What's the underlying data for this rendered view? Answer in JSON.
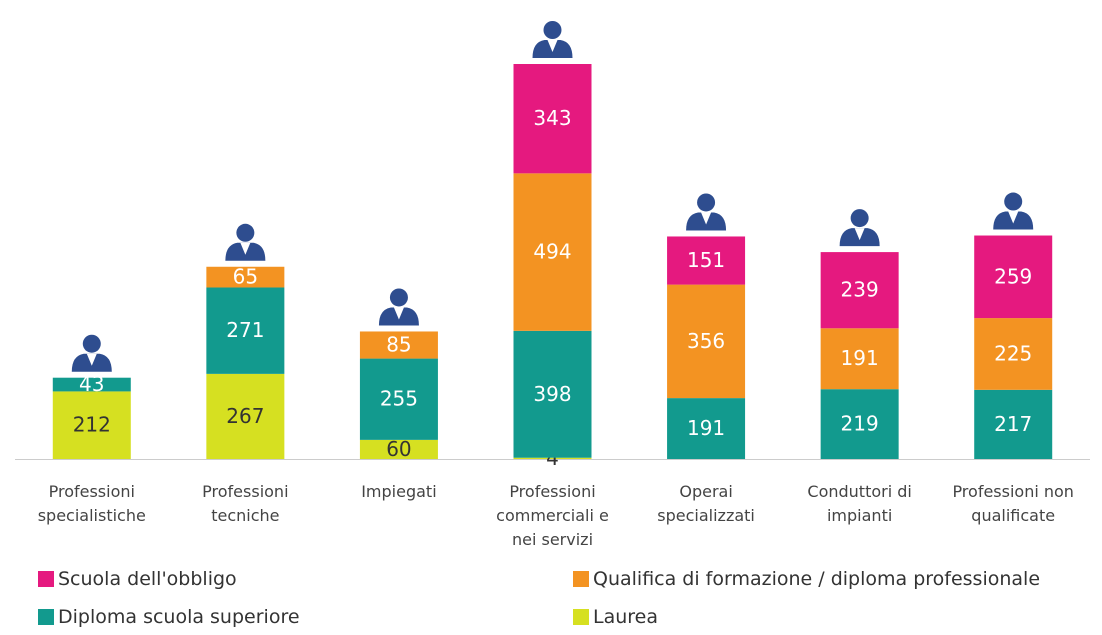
{
  "chart_data": {
    "type": "stacked_bar",
    "categories": [
      "Professioni specialistiche",
      "Professioni tecniche",
      "Impiegati",
      "Professioni commerciali e nei servizi",
      "Operai specializzati",
      "Conduttori di impianti",
      "Professioni non qualificate"
    ],
    "series": [
      {
        "name": "Laurea",
        "color": "#d6e021",
        "values": [
          212,
          267,
          60,
          4,
          null,
          null,
          null
        ]
      },
      {
        "name": "Diploma scuola superiore",
        "color": "#129a8e",
        "values": [
          43,
          271,
          255,
          398,
          191,
          219,
          217
        ]
      },
      {
        "name": "Qualifica di formazione / diploma professionale",
        "color": "#f39322",
        "values": [
          null,
          65,
          85,
          494,
          356,
          191,
          225
        ]
      },
      {
        "name": "Scuola dell'obbligo",
        "color": "#e5197f",
        "values": [
          null,
          null,
          null,
          343,
          151,
          239,
          259
        ]
      }
    ],
    "legend": "bottom"
  }
}
